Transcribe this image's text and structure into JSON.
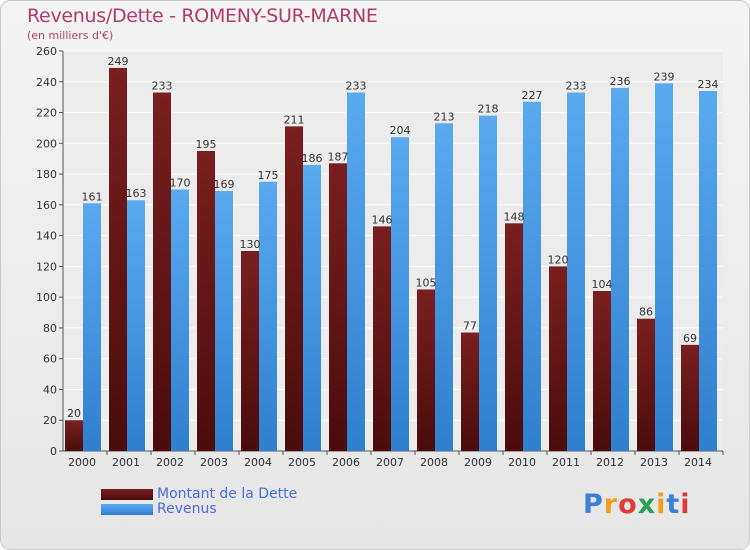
{
  "header": {
    "title": "Revenus/Dette - ROMENY-SUR-MARNE",
    "subtitle": "(en milliers d'€)"
  },
  "legend": {
    "debt_label": "Montant de la Dette",
    "revenue_label": "Revenus"
  },
  "logo": {
    "text": "Proxiti"
  },
  "colors": {
    "debt": "#7a1f1f",
    "debt_dark": "#4a0c0c",
    "revenue": "#5aaaf0",
    "revenue_dark": "#2f7fcf",
    "title": "#b03a6e",
    "legend_text": "#4a6de0"
  },
  "chart_data": {
    "type": "bar",
    "title": "Revenus/Dette - ROMENY-SUR-MARNE",
    "subtitle": "(en milliers d'€)",
    "xlabel": "",
    "ylabel": "",
    "categories": [
      "2000",
      "2001",
      "2002",
      "2003",
      "2004",
      "2005",
      "2006",
      "2007",
      "2008",
      "2009",
      "2010",
      "2011",
      "2012",
      "2013",
      "2014"
    ],
    "series": [
      {
        "name": "Montant de la Dette",
        "values": [
          20,
          249,
          233,
          195,
          130,
          211,
          187,
          146,
          105,
          77,
          148,
          120,
          104,
          86,
          69
        ]
      },
      {
        "name": "Revenus",
        "values": [
          161,
          163,
          170,
          169,
          175,
          186,
          233,
          204,
          213,
          218,
          227,
          233,
          236,
          239,
          234
        ]
      }
    ],
    "ylim": [
      0,
      260
    ],
    "yticks": [
      0,
      20,
      40,
      60,
      80,
      100,
      120,
      140,
      160,
      180,
      200,
      220,
      240,
      260
    ],
    "grid": true,
    "legend_position": "bottom-left"
  }
}
